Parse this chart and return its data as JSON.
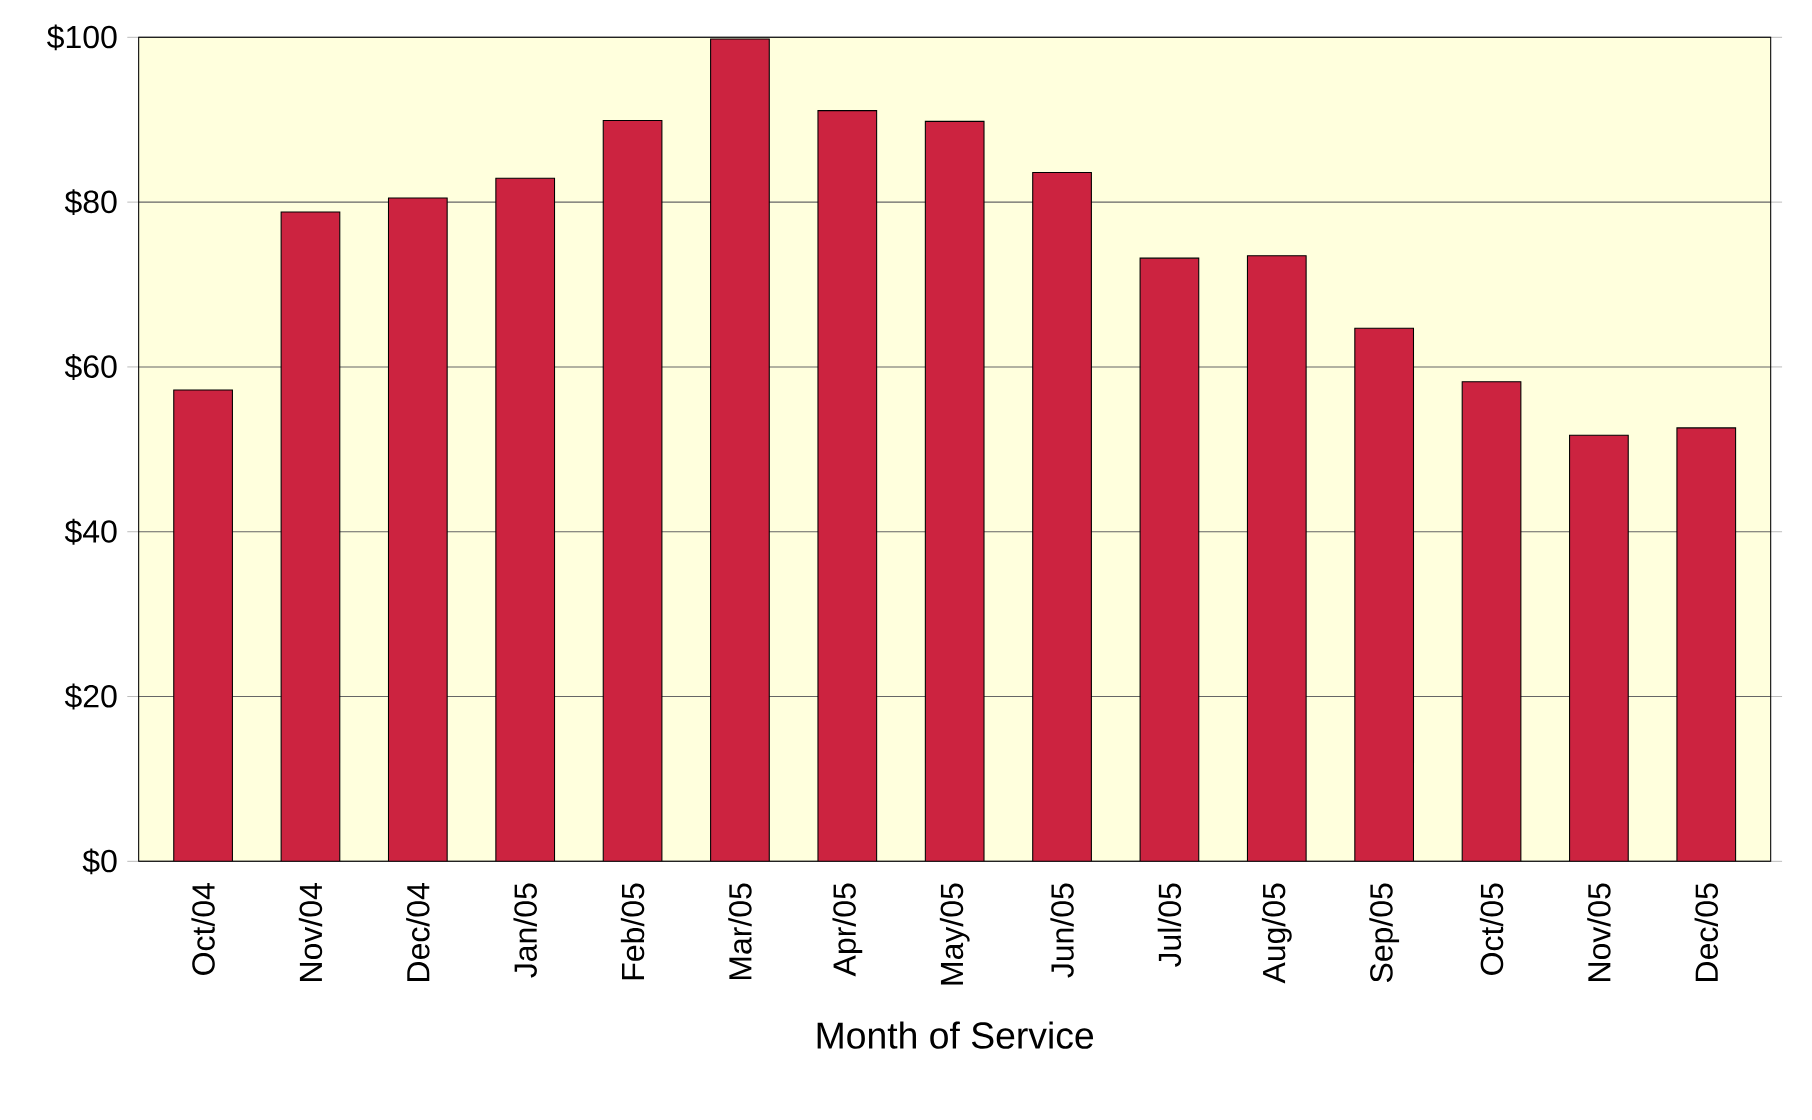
{
  "chart_data": {
    "type": "bar",
    "xlabel": "Month of Service",
    "categories": [
      "Oct/04",
      "Nov/04",
      "Dec/04",
      "Jan/05",
      "Feb/05",
      "Mar/05",
      "Apr/05",
      "May/05",
      "Jun/05",
      "Jul/05",
      "Aug/05",
      "Sep/05",
      "Oct/05",
      "Nov/05",
      "Dec/05"
    ],
    "values": [
      57.2,
      78.8,
      80.5,
      82.9,
      89.9,
      99.8,
      91.1,
      89.8,
      83.6,
      73.2,
      73.5,
      64.7,
      58.2,
      51.7,
      52.6
    ],
    "color": "#cc2340",
    "ylim": [
      0,
      100
    ],
    "yticks": [
      {
        "value": 0,
        "label": "$0"
      },
      {
        "value": 20,
        "label": "$20"
      },
      {
        "value": 40,
        "label": "$40"
      },
      {
        "value": 60,
        "label": "$60"
      },
      {
        "value": 80,
        "label": "$80"
      },
      {
        "value": 100,
        "label": "$100"
      }
    ],
    "grid": "y"
  }
}
